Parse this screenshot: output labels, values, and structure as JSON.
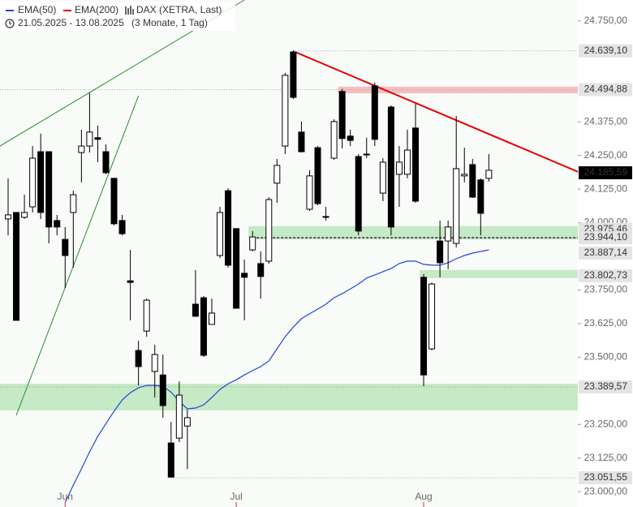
{
  "chart_data": {
    "type": "candlestick",
    "title": "DAX (XETRA, Last)",
    "subtitle": "21.05.2025 - 13.08.2025",
    "period": "(3 Monate, 1 Tag)",
    "categories": [
      null,
      null,
      null,
      null,
      null,
      null,
      null,
      "Jun",
      null,
      null,
      null,
      null,
      null,
      null,
      null,
      null,
      null,
      null,
      null,
      null,
      null,
      null,
      null,
      null,
      null,
      null,
      null,
      null,
      "Jul",
      null,
      null,
      null,
      null,
      null,
      null,
      null,
      null,
      null,
      null,
      null,
      null,
      null,
      null,
      null,
      null,
      null,
      null,
      null,
      null,
      null,
      null,
      "Aug",
      null,
      null,
      null,
      null,
      null,
      null,
      null,
      null
    ],
    "open": [
      24014,
      24038,
      24020,
      24059,
      24264,
      24264,
      24008,
      23938,
      24038,
      24261,
      24285,
      24316,
      24264,
      24165,
      24008,
      23784,
      23525,
      23597,
      23447,
      23434,
      23181,
      23199,
      23244,
      23697,
      23721,
      23622,
      23878,
      24119,
      23978,
      23812,
      23899,
      23848,
      23857,
      24147,
      24285,
      24635,
      24337,
      24050,
      24279,
      24023,
      24240,
      24488,
      24322,
      24246,
      24255,
      24509,
      24110,
      24430,
      24180,
      24180,
      24352,
      23797,
      23531,
      23932,
      23932,
      23923,
      24174,
      24216,
      24159,
      24165
    ],
    "high": [
      24165,
      24038,
      24104,
      24285,
      24331,
      24264,
      24029,
      23984,
      24119,
      24346,
      24482,
      24361,
      24291,
      24165,
      24029,
      23899,
      23561,
      23718,
      23546,
      23510,
      23259,
      23410,
      23305,
      23824,
      23727,
      23718,
      24059,
      24128,
      23978,
      23863,
      23969,
      23893,
      24095,
      24237,
      24557,
      24641,
      24376,
      24195,
      24285,
      24059,
      24385,
      24497,
      24346,
      24255,
      24316,
      24521,
      24240,
      24436,
      24285,
      24346,
      24442,
      23809,
      23778,
      24008,
      24008,
      24397,
      24279,
      24237,
      24165,
      24255
    ],
    "low": [
      23953,
      23637,
      24014,
      24038,
      24014,
      23923,
      23953,
      23757,
      23833,
      24150,
      24261,
      24225,
      24180,
      23990,
      23953,
      23637,
      23395,
      23576,
      23350,
      23275,
      23054,
      23184,
      23084,
      23652,
      23501,
      23622,
      23869,
      23833,
      23682,
      23637,
      23893,
      23718,
      23848,
      24074,
      24255,
      24460,
      24261,
      24044,
      24065,
      24008,
      24234,
      24276,
      24285,
      23953,
      24240,
      24285,
      24080,
      23953,
      24059,
      24165,
      24074,
      23392,
      23525,
      23797,
      23827,
      23908,
      24150,
      24092,
      23953,
      24153
    ],
    "close": [
      24029,
      23637,
      24038,
      24240,
      24038,
      23984,
      23984,
      23878,
      24104,
      24285,
      24337,
      24310,
      24186,
      23996,
      23959,
      23778,
      23465,
      23712,
      23510,
      23320,
      23054,
      23359,
      23275,
      23652,
      23507,
      23664,
      24038,
      23842,
      23682,
      23797,
      23947,
      23800,
      24086,
      24213,
      24548,
      24466,
      24264,
      24174,
      24071,
      24020,
      24376,
      24313,
      24306,
      23969,
      24252,
      24310,
      24225,
      23984,
      24225,
      24270,
      24080,
      23434,
      23772,
      23851,
      23984,
      24201,
      24180,
      24095,
      24035,
      24195
    ],
    "up_color": "#ffffff",
    "down_color": "#000000",
    "indicators": [
      {
        "name": "EMA(50)",
        "color": "#2244dd",
        "values": [
          null,
          null,
          null,
          null,
          null,
          null,
          null,
          22960,
          23024,
          23085,
          23148,
          23205,
          23253,
          23299,
          23341,
          23368,
          23386,
          23395,
          23395,
          23392,
          23370,
          23335,
          23308,
          23311,
          23323,
          23350,
          23380,
          23401,
          23416,
          23434,
          23450,
          23465,
          23486,
          23531,
          23576,
          23612,
          23643,
          23661,
          23679,
          23697,
          23721,
          23736,
          23754,
          23772,
          23794,
          23806,
          23818,
          23830,
          23848,
          23857,
          23857,
          23845,
          23842,
          23842,
          23851,
          23866,
          23878,
          23887,
          23893,
          23899
        ]
      },
      {
        "name": "EMA(200)",
        "color": "#e00000"
      }
    ],
    "ylim": [
      22943,
      24828
    ],
    "yticks": [
      {
        "value": 24750,
        "label": "24.750,00"
      },
      {
        "value": 24375,
        "label": "24.375,00"
      },
      {
        "value": 24250,
        "label": "24.250,00"
      },
      {
        "value": 24125,
        "label": "24.125,00"
      },
      {
        "value": 24000,
        "label": "24.000,00"
      },
      {
        "value": 23750,
        "label": "23.750,00"
      },
      {
        "value": 23625,
        "label": "23.625,00"
      },
      {
        "value": 23500,
        "label": "23.500,00"
      },
      {
        "value": 23250,
        "label": "23.250,00"
      },
      {
        "value": 23125,
        "label": "23.125,00"
      },
      {
        "value": 23000,
        "label": "23.000,00"
      }
    ],
    "bands": [
      {
        "low": 24481,
        "high": 24506,
        "color": "#f4b8b8",
        "start": 41
      },
      {
        "low": 23938,
        "high": 23987,
        "color": "#bfe8bf",
        "start": 30
      },
      {
        "low": 23794,
        "high": 23824,
        "color": "#bfe8bf",
        "start": 51
      },
      {
        "low": 23302,
        "high": 23401,
        "color": "#bfe8bf",
        "start": -1
      }
    ],
    "levels": [
      {
        "value": 24639.1,
        "color": "#aaaaaa",
        "start": 35
      },
      {
        "value": 24494.88,
        "color": "#aaaaaa",
        "start": -1
      },
      {
        "value": 23944.1,
        "color": "#555555",
        "start": 30
      },
      {
        "value": 23389.57,
        "color": "#999999",
        "start": -1
      },
      {
        "value": 23051.55,
        "color": "#aaaaaa",
        "start": 20
      }
    ],
    "trendlines": [
      {
        "color": "#e00000",
        "points": [
          [
            35.2,
            24635
          ],
          [
            70.2,
            24186
          ]
        ]
      },
      {
        "color": "#2a8a2a",
        "points": [
          [
            -1,
            24285
          ],
          [
            29,
            24828
          ]
        ]
      },
      {
        "color": "#2a8a2a",
        "points": [
          [
            1,
            23284
          ],
          [
            16,
            24472
          ]
        ]
      }
    ],
    "price_labels": [
      {
        "value": 24639.1,
        "label": "24.639,10",
        "bg": "#e4e4e4",
        "fg": "#333333"
      },
      {
        "value": 24494.88,
        "label": "24.494,88",
        "bg": "#e4e4e4",
        "fg": "#333333"
      },
      {
        "value": 24185.59,
        "label": "24.185,59",
        "bg": "#000000",
        "fg": "#ffffff"
      },
      {
        "value": 23975.46,
        "label": "23.975,46",
        "bg": "#e4e4e4",
        "fg": "#333333"
      },
      {
        "value": 23944.1,
        "label": "23.944,10",
        "bg": "#e4e4e4",
        "fg": "#333333"
      },
      {
        "value": 23887.14,
        "label": "23.887,14",
        "bg": "#e4e4e4",
        "fg": "#333333"
      },
      {
        "value": 23802.73,
        "label": "23.802,73",
        "bg": "#e4e4e4",
        "fg": "#333333"
      },
      {
        "value": 23389.57,
        "label": "23.389,57",
        "bg": "#e4e4e4",
        "fg": "#333333"
      },
      {
        "value": 23051.55,
        "label": "23.051,55",
        "bg": "#e4e4e4",
        "fg": "#333333"
      }
    ]
  }
}
